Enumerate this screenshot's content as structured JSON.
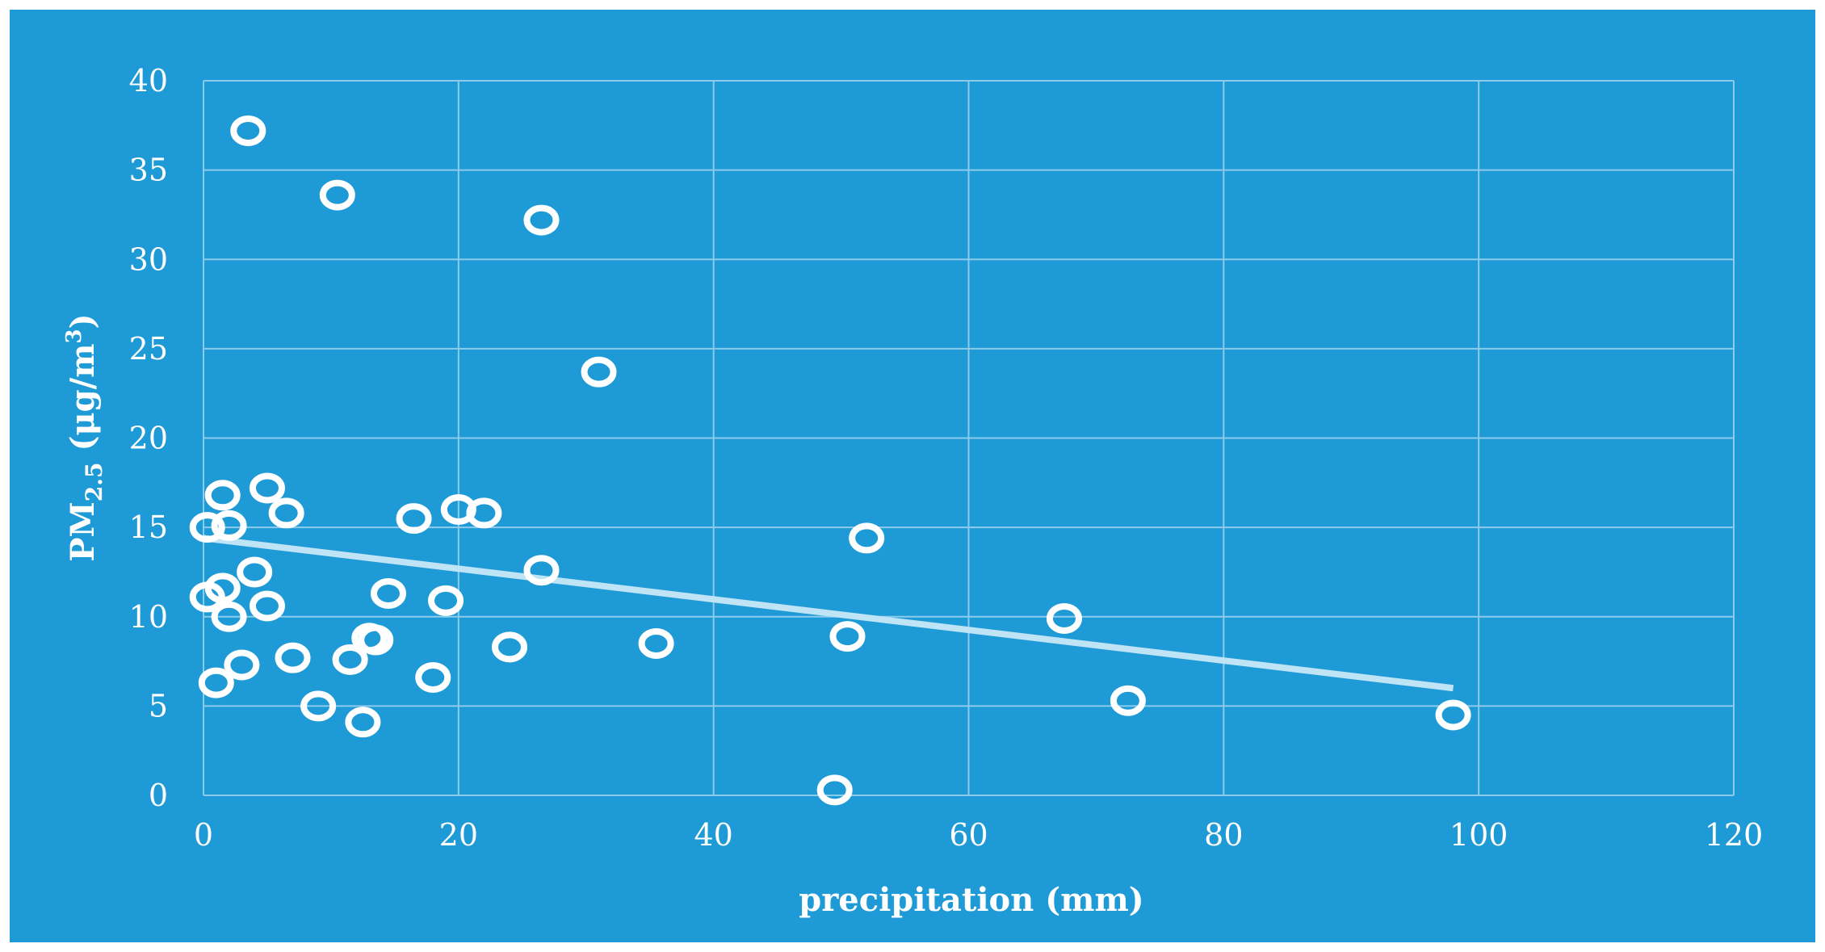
{
  "chart_data": {
    "type": "scatter",
    "title": "",
    "xlabel": "precipitation (mm)",
    "ylabel": {
      "prefix": "PM",
      "subscript": "2.5",
      "unit_before_exp": " (μg/m",
      "superscript": "3",
      "unit_after_exp": ")"
    },
    "xlim": [
      0,
      120
    ],
    "ylim": [
      0,
      40
    ],
    "x_ticks": [
      0,
      20,
      40,
      60,
      80,
      100,
      120
    ],
    "y_ticks": [
      0,
      5,
      10,
      15,
      20,
      25,
      30,
      35,
      40
    ],
    "grid": true,
    "legend": "none",
    "colors": {
      "background": "#1e9ad6",
      "gridline": "#8ccbea",
      "point_stroke": "#ffffff",
      "trendline": "#bfe4f6",
      "text": "#ffffff"
    },
    "series": [
      {
        "marker": "hollow-circle",
        "points": [
          [
            3.5,
            37.2
          ],
          [
            10.5,
            33.6
          ],
          [
            26.5,
            32.2
          ],
          [
            31,
            23.7
          ],
          [
            5,
            17.2
          ],
          [
            1.5,
            16.8
          ],
          [
            6.5,
            15.8
          ],
          [
            20,
            16.0
          ],
          [
            22,
            15.8
          ],
          [
            16.5,
            15.5
          ],
          [
            0.3,
            15.0
          ],
          [
            2,
            15.1
          ],
          [
            52,
            14.4
          ],
          [
            4,
            12.5
          ],
          [
            26.5,
            12.6
          ],
          [
            1.5,
            11.6
          ],
          [
            0.3,
            11.1
          ],
          [
            14.5,
            11.3
          ],
          [
            19,
            10.9
          ],
          [
            5,
            10.6
          ],
          [
            2,
            10.0
          ],
          [
            67.5,
            9.9
          ],
          [
            50.5,
            8.9
          ],
          [
            13,
            8.8
          ],
          [
            13.5,
            8.7
          ],
          [
            35.5,
            8.5
          ],
          [
            24,
            8.3
          ],
          [
            7,
            7.7
          ],
          [
            11.5,
            7.6
          ],
          [
            3,
            7.3
          ],
          [
            18,
            6.6
          ],
          [
            1,
            6.3
          ],
          [
            72.5,
            5.3
          ],
          [
            9,
            5.0
          ],
          [
            12.5,
            4.1
          ],
          [
            98,
            4.5
          ],
          [
            49.5,
            0.3
          ]
        ]
      }
    ],
    "trendline": {
      "type": "linear",
      "start": [
        0,
        14.4
      ],
      "end": [
        98,
        6.0
      ]
    }
  }
}
